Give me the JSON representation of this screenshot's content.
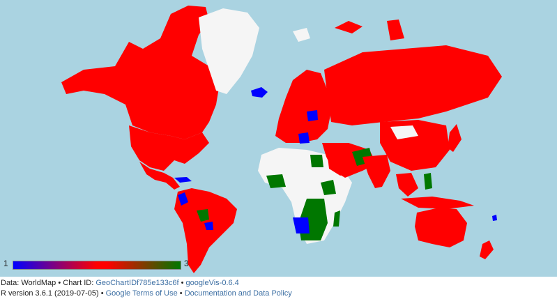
{
  "legend": {
    "min": "1",
    "max": "3"
  },
  "colors": {
    "ocean": "#aad3e1",
    "low": "#0000ff",
    "mid": "#ff0000",
    "high": "#007700",
    "no_data": "#f5f5f5",
    "greenland": "#f5f5f5"
  },
  "footer": {
    "data_label": "Data: WorldMap",
    "sep": " • ",
    "chart_id_label": "Chart ID:",
    "chart_id": "GeoChartIDf785e133c6f",
    "googlevis": "googleVis-0.6.4",
    "r_version": "R version 3.6.1 (2019-07-05)",
    "terms": "Google Terms of Use",
    "docs": "Documentation and Data Policy"
  }
}
